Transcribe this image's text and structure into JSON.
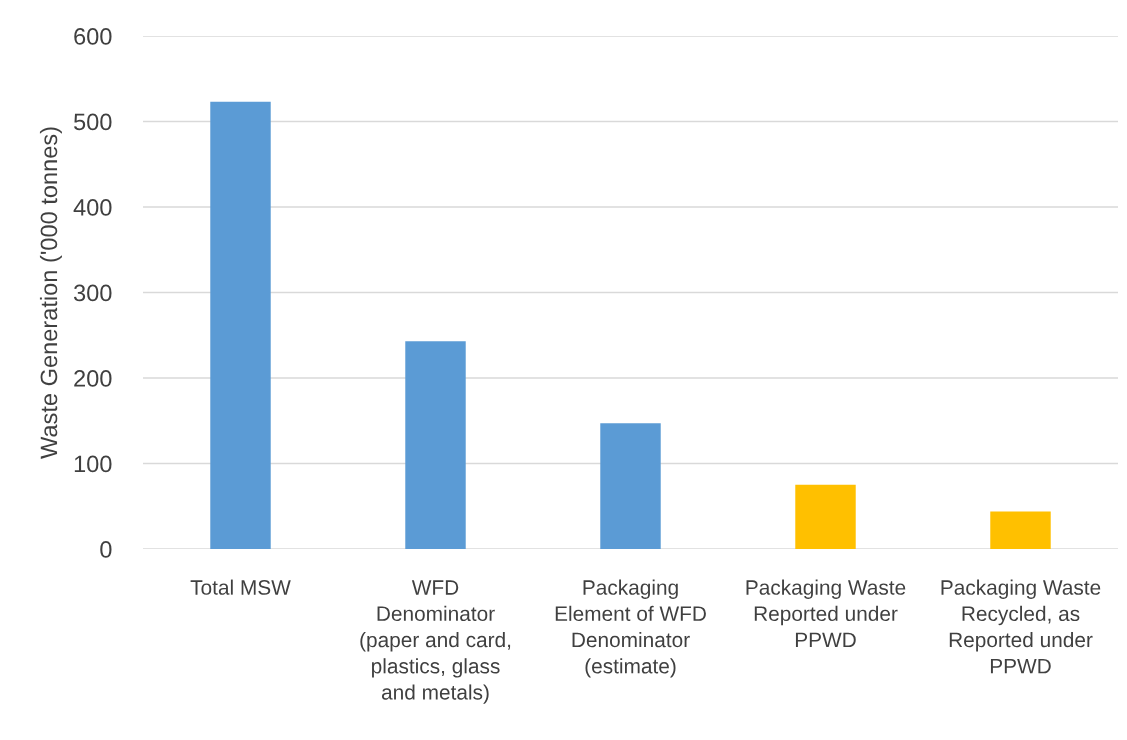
{
  "chart_data": {
    "type": "bar",
    "categories": [
      "Total MSW",
      "WFD\nDenominator\n(paper and card,\nplastics, glass\nand metals)",
      "Packaging\nElement of WFD\nDenominator\n(estimate)",
      "Packaging Waste\nReported under\nPPWD",
      "Packaging Waste\nRecycled, as\nReported under\nPPWD"
    ],
    "values": [
      523,
      243,
      147,
      75,
      44
    ],
    "colors": [
      "#5b9bd5",
      "#5b9bd5",
      "#5b9bd5",
      "#ffc000",
      "#ffc000"
    ],
    "ylabel": "Waste Generation ('000 tonnes)",
    "ylim": [
      0,
      600
    ],
    "yticks": [
      0,
      100,
      200,
      300,
      400,
      500,
      600
    ],
    "grid": "y"
  }
}
